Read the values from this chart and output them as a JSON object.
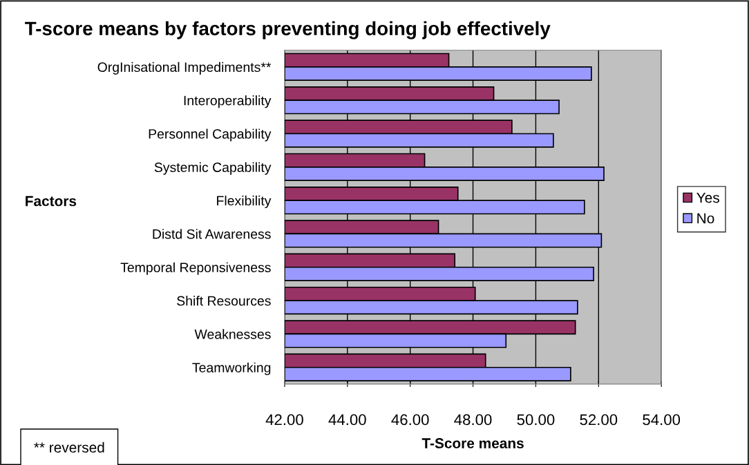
{
  "chart_data": {
    "type": "bar",
    "orientation": "horizontal",
    "title": "T-score means by factors preventing doing job effectively",
    "xlabel": "T-Score means",
    "ylabel": "Factors",
    "categories": [
      "OrgInisational Impediments**",
      "Interoperability",
      "Personnel Capability",
      "Systemic Capability",
      "Flexibility",
      "Distd Sit Awareness",
      "Temporal Reponsiveness",
      "Shift Resources",
      "Weaknesses",
      "Teamworking"
    ],
    "series": [
      {
        "name": "Yes",
        "color": "#993366",
        "values": [
          47.23,
          48.66,
          49.24,
          46.46,
          47.52,
          46.9,
          47.42,
          48.07,
          51.26,
          48.4
        ]
      },
      {
        "name": "No",
        "color": "#9999ff",
        "values": [
          51.77,
          50.74,
          50.56,
          52.17,
          51.55,
          52.09,
          51.84,
          51.33,
          49.05,
          51.11
        ]
      }
    ],
    "xlim": [
      42,
      54
    ],
    "xticks": [
      {
        "value": 42,
        "label": "42.00"
      },
      {
        "value": 44,
        "label": "44.00"
      },
      {
        "value": 46,
        "label": "46.00"
      },
      {
        "value": 48,
        "label": "48.00"
      },
      {
        "value": 50,
        "label": "50.00"
      },
      {
        "value": 52,
        "label": "52.00"
      },
      {
        "value": 54,
        "label": "54.00"
      }
    ],
    "grid": "x",
    "legend": "right",
    "annotations": [
      "** reversed"
    ]
  }
}
